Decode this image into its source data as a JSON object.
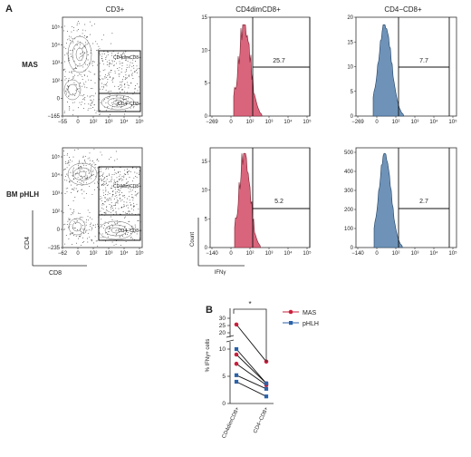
{
  "panelA": {
    "label": "A",
    "columns": {
      "cd3": "CD3+",
      "cd4dim": "CD4dimCD8+",
      "cd4neg": "CD4−CD8+"
    },
    "rows": {
      "mas": "MAS",
      "bm": "BM pHLH"
    },
    "scatter": {
      "gate_cd4dim": "CD4dimCD8+",
      "gate_cd4neg": "CD4−CD8+",
      "y_axis": "CD4",
      "x_axis": "CD8",
      "mas_yticks": [
        "10⁵",
        "10⁴",
        "10³",
        "10²",
        "0",
        "−165"
      ],
      "mas_xticks": [
        "−55",
        "0",
        "10²",
        "10³",
        "10⁴",
        "10⁵"
      ],
      "bm_yticks": [
        "10⁵",
        "10⁴",
        "10³",
        "10²",
        "0",
        "−235"
      ],
      "bm_xticks": [
        "−62",
        "0",
        "10²",
        "10³",
        "10⁴",
        "10⁵"
      ]
    },
    "histograms": {
      "mas_cd4dim": {
        "value": "25.7",
        "yticks": [
          "15",
          "10",
          "5",
          "0"
        ],
        "xticks": [
          "−269",
          "0",
          "10²",
          "10³",
          "10⁴",
          "10⁵"
        ]
      },
      "mas_cd4neg": {
        "value": "7.7",
        "yticks": [
          "20",
          "15",
          "10",
          "5",
          "0"
        ],
        "xticks": [
          "−269",
          "0",
          "10²",
          "10³",
          "10⁴",
          "10⁵"
        ]
      },
      "bm_cd4dim": {
        "value": "5.2",
        "yticks": [
          "15",
          "10",
          "5",
          "0"
        ],
        "xticks": [
          "−140",
          "0",
          "10²",
          "10³",
          "10⁴",
          "10⁵"
        ],
        "ylabel": "Count",
        "xlabel": "IFNγ"
      },
      "bm_cd4neg": {
        "value": "2.7",
        "yticks": [
          "500",
          "400",
          "300",
          "200",
          "100",
          "0"
        ],
        "xticks": [
          "−140",
          "0",
          "10²",
          "10³",
          "10⁴",
          "10⁵"
        ]
      }
    }
  },
  "panelB": {
    "label": "B",
    "significance": "*",
    "ylabel": "% IFNγ+ cells",
    "yticks_upper": [
      "30",
      "25",
      "20"
    ],
    "yticks_lower": [
      "10",
      "5",
      "0"
    ],
    "categories": [
      "CD4dimCD8+",
      "CD4−CD8+"
    ],
    "legend": [
      {
        "name": "MAS",
        "color": "#c8203c"
      },
      {
        "name": "pHLH",
        "color": "#2b62a8"
      }
    ]
  },
  "chart_data": {
    "type": "scatter",
    "categories": [
      "CD4dimCD8+",
      "CD4−CD8+"
    ],
    "ylabel": "% IFNγ+ cells",
    "series": [
      {
        "name": "MAS",
        "pairs": [
          [
            25.7,
            7.7
          ],
          [
            9.0,
            3.7
          ],
          [
            7.3,
            3.4
          ]
        ]
      },
      {
        "name": "pHLH",
        "pairs": [
          [
            10.0,
            3.7
          ],
          [
            5.2,
            2.7
          ],
          [
            4.0,
            1.3
          ]
        ]
      }
    ]
  }
}
